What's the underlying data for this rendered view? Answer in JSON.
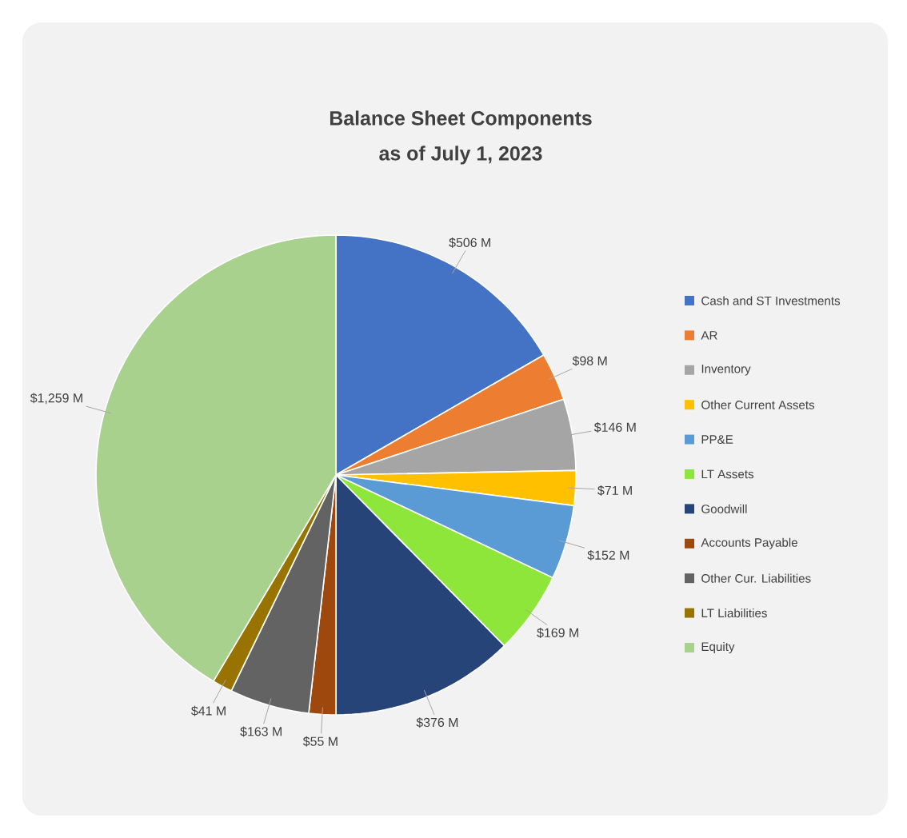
{
  "chart_data": {
    "type": "pie",
    "title": "Balance Sheet Components",
    "subtitle": "as of July 1, 2023",
    "categories": [
      "Cash and ST Investments",
      "AR",
      "Inventory",
      "Other Current Assets",
      "PP&E",
      "LT Assets",
      "Goodwill",
      "Accounts Payable",
      "Other Cur. Liabilities",
      "LT Liabilities",
      "Equity"
    ],
    "values": [
      506,
      98,
      146,
      71,
      152,
      169,
      376,
      55,
      163,
      41,
      1259
    ],
    "value_labels": [
      "$506 M",
      "$98 M",
      "$146 M",
      "$71 M",
      "$152 M",
      "$169 M",
      "$376 M",
      "$55 M",
      "$163 M",
      "$41 M",
      "$1,259 M"
    ],
    "colors": [
      "#4472c4",
      "#ed7d31",
      "#a5a5a5",
      "#ffc000",
      "#5b9bd5",
      "#8ee63a",
      "#264478",
      "#9e480e",
      "#636363",
      "#997300",
      "#a9d18e"
    ],
    "legend": "right"
  }
}
